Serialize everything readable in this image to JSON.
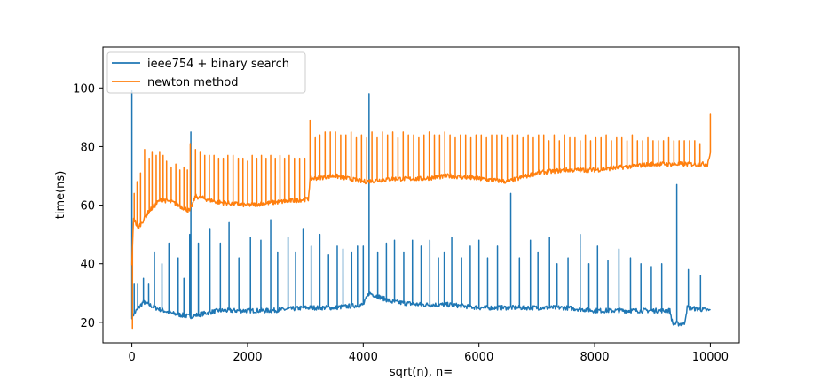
{
  "chart_data": {
    "type": "line",
    "title": "",
    "xlabel": "sqrt(n), n=",
    "ylabel": "time(ns)",
    "xlim": [
      -500,
      10500
    ],
    "ylim": [
      13,
      114
    ],
    "xticks": [
      0,
      2000,
      4000,
      6000,
      8000,
      10000
    ],
    "yticks": [
      20,
      40,
      60,
      80,
      100
    ],
    "legend_position": "top-left",
    "grid": false,
    "series": [
      {
        "name": "ieee754 + binary search",
        "color": "#1f77b4",
        "baseline": [
          [
            0,
            22
          ],
          [
            200,
            27
          ],
          [
            400,
            25
          ],
          [
            700,
            23
          ],
          [
            1000,
            22
          ],
          [
            1500,
            24
          ],
          [
            2000,
            24
          ],
          [
            2400,
            24
          ],
          [
            3000,
            25
          ],
          [
            3500,
            25
          ],
          [
            4000,
            26
          ],
          [
            4100,
            30
          ],
          [
            4500,
            27
          ],
          [
            5000,
            26
          ],
          [
            5500,
            26
          ],
          [
            6000,
            25
          ],
          [
            6500,
            25
          ],
          [
            7000,
            25
          ],
          [
            7500,
            25
          ],
          [
            8000,
            24
          ],
          [
            8500,
            24
          ],
          [
            9000,
            24
          ],
          [
            9300,
            24
          ],
          [
            9350,
            19.5
          ],
          [
            9550,
            19.5
          ],
          [
            9600,
            25
          ],
          [
            10000,
            24
          ]
        ],
        "spikes": [
          [
            0,
            99
          ],
          [
            40,
            33
          ],
          [
            100,
            33
          ],
          [
            200,
            35
          ],
          [
            290,
            33
          ],
          [
            390,
            44
          ],
          [
            520,
            40
          ],
          [
            640,
            47
          ],
          [
            800,
            42
          ],
          [
            900,
            35
          ],
          [
            1000,
            50
          ],
          [
            1020,
            85
          ],
          [
            1150,
            47
          ],
          [
            1350,
            52
          ],
          [
            1530,
            47
          ],
          [
            1680,
            54
          ],
          [
            1850,
            42
          ],
          [
            2050,
            49
          ],
          [
            2230,
            48
          ],
          [
            2400,
            55
          ],
          [
            2520,
            44
          ],
          [
            2700,
            49
          ],
          [
            2830,
            44
          ],
          [
            2960,
            52
          ],
          [
            3100,
            46
          ],
          [
            3250,
            50
          ],
          [
            3400,
            43
          ],
          [
            3550,
            46
          ],
          [
            3650,
            45
          ],
          [
            3800,
            44
          ],
          [
            3900,
            46
          ],
          [
            4000,
            46
          ],
          [
            4100,
            98
          ],
          [
            4250,
            44
          ],
          [
            4400,
            47
          ],
          [
            4540,
            48
          ],
          [
            4700,
            44
          ],
          [
            4850,
            48
          ],
          [
            5000,
            46
          ],
          [
            5150,
            48
          ],
          [
            5300,
            42
          ],
          [
            5400,
            44
          ],
          [
            5530,
            49
          ],
          [
            5700,
            42
          ],
          [
            5850,
            46
          ],
          [
            6000,
            48
          ],
          [
            6150,
            42
          ],
          [
            6320,
            46
          ],
          [
            6550,
            64
          ],
          [
            6700,
            42
          ],
          [
            6890,
            48
          ],
          [
            7020,
            44
          ],
          [
            7220,
            49
          ],
          [
            7350,
            40
          ],
          [
            7540,
            42
          ],
          [
            7750,
            50
          ],
          [
            7900,
            40
          ],
          [
            8050,
            46
          ],
          [
            8230,
            41
          ],
          [
            8420,
            45
          ],
          [
            8620,
            42
          ],
          [
            8800,
            40
          ],
          [
            8980,
            39
          ],
          [
            9160,
            40
          ],
          [
            9420,
            67
          ],
          [
            9620,
            38
          ],
          [
            9830,
            36
          ]
        ]
      },
      {
        "name": "newton method",
        "color": "#ff7f0e",
        "baseline": [
          [
            0,
            40
          ],
          [
            30,
            56
          ],
          [
            100,
            52
          ],
          [
            200,
            55
          ],
          [
            300,
            58
          ],
          [
            400,
            60
          ],
          [
            500,
            62
          ],
          [
            700,
            61
          ],
          [
            900,
            59
          ],
          [
            1000,
            58
          ],
          [
            1100,
            63
          ],
          [
            1500,
            61
          ],
          [
            2000,
            60
          ],
          [
            2500,
            61
          ],
          [
            3000,
            62
          ],
          [
            3050,
            62
          ],
          [
            3080,
            69
          ],
          [
            3500,
            70
          ],
          [
            4000,
            68
          ],
          [
            4500,
            69
          ],
          [
            5000,
            69
          ],
          [
            5500,
            70
          ],
          [
            6000,
            69
          ],
          [
            6500,
            68
          ],
          [
            7000,
            71
          ],
          [
            7500,
            72
          ],
          [
            8000,
            72
          ],
          [
            8500,
            73
          ],
          [
            9000,
            74
          ],
          [
            9500,
            74
          ],
          [
            9950,
            74
          ],
          [
            10000,
            78
          ]
        ],
        "spikes": [
          [
            5,
            18
          ],
          [
            40,
            64
          ],
          [
            90,
            68
          ],
          [
            150,
            71
          ],
          [
            220,
            79
          ],
          [
            300,
            76
          ],
          [
            350,
            78
          ],
          [
            420,
            77
          ],
          [
            480,
            78
          ],
          [
            540,
            77
          ],
          [
            600,
            75
          ],
          [
            680,
            73
          ],
          [
            760,
            74
          ],
          [
            830,
            72
          ],
          [
            900,
            73
          ],
          [
            960,
            72
          ],
          [
            1010,
            81
          ],
          [
            1100,
            79
          ],
          [
            1180,
            78
          ],
          [
            1260,
            77
          ],
          [
            1340,
            77
          ],
          [
            1420,
            77
          ],
          [
            1500,
            76
          ],
          [
            1580,
            76
          ],
          [
            1660,
            77
          ],
          [
            1750,
            77
          ],
          [
            1840,
            76
          ],
          [
            1920,
            76
          ],
          [
            2000,
            75
          ],
          [
            2080,
            77
          ],
          [
            2160,
            76
          ],
          [
            2240,
            77
          ],
          [
            2320,
            76
          ],
          [
            2400,
            77
          ],
          [
            2480,
            76
          ],
          [
            2560,
            77
          ],
          [
            2640,
            76
          ],
          [
            2720,
            77
          ],
          [
            2810,
            76
          ],
          [
            2900,
            76
          ],
          [
            2990,
            76
          ],
          [
            3080,
            89
          ],
          [
            3170,
            83
          ],
          [
            3250,
            84
          ],
          [
            3340,
            85
          ],
          [
            3430,
            85
          ],
          [
            3520,
            85
          ],
          [
            3610,
            84
          ],
          [
            3700,
            84
          ],
          [
            3790,
            85
          ],
          [
            3880,
            83
          ],
          [
            3970,
            84
          ],
          [
            4060,
            83
          ],
          [
            4150,
            85
          ],
          [
            4240,
            83
          ],
          [
            4330,
            85
          ],
          [
            4420,
            84
          ],
          [
            4510,
            85
          ],
          [
            4600,
            83
          ],
          [
            4690,
            85
          ],
          [
            4780,
            84
          ],
          [
            4870,
            84
          ],
          [
            4960,
            83
          ],
          [
            5050,
            84
          ],
          [
            5140,
            85
          ],
          [
            5230,
            84
          ],
          [
            5320,
            84
          ],
          [
            5410,
            85
          ],
          [
            5500,
            84
          ],
          [
            5590,
            83
          ],
          [
            5680,
            84
          ],
          [
            5770,
            84
          ],
          [
            5860,
            83
          ],
          [
            5950,
            84
          ],
          [
            6040,
            84
          ],
          [
            6130,
            83
          ],
          [
            6220,
            84
          ],
          [
            6310,
            84
          ],
          [
            6400,
            84
          ],
          [
            6490,
            83
          ],
          [
            6580,
            84
          ],
          [
            6670,
            84
          ],
          [
            6760,
            83
          ],
          [
            6850,
            84
          ],
          [
            6940,
            83
          ],
          [
            7030,
            84
          ],
          [
            7120,
            84
          ],
          [
            7210,
            82
          ],
          [
            7300,
            84
          ],
          [
            7390,
            82
          ],
          [
            7480,
            84
          ],
          [
            7570,
            83
          ],
          [
            7660,
            83
          ],
          [
            7750,
            82
          ],
          [
            7840,
            84
          ],
          [
            7930,
            82
          ],
          [
            8020,
            83
          ],
          [
            8110,
            83
          ],
          [
            8200,
            84
          ],
          [
            8290,
            82
          ],
          [
            8380,
            83
          ],
          [
            8470,
            83
          ],
          [
            8560,
            82
          ],
          [
            8650,
            84
          ],
          [
            8740,
            82
          ],
          [
            8830,
            82
          ],
          [
            8920,
            83
          ],
          [
            9010,
            82
          ],
          [
            9100,
            82
          ],
          [
            9190,
            82
          ],
          [
            9280,
            83
          ],
          [
            9370,
            82
          ],
          [
            9460,
            82
          ],
          [
            9550,
            82
          ],
          [
            9640,
            82
          ],
          [
            9730,
            82
          ],
          [
            9820,
            81
          ],
          [
            10000,
            91
          ]
        ]
      }
    ]
  }
}
